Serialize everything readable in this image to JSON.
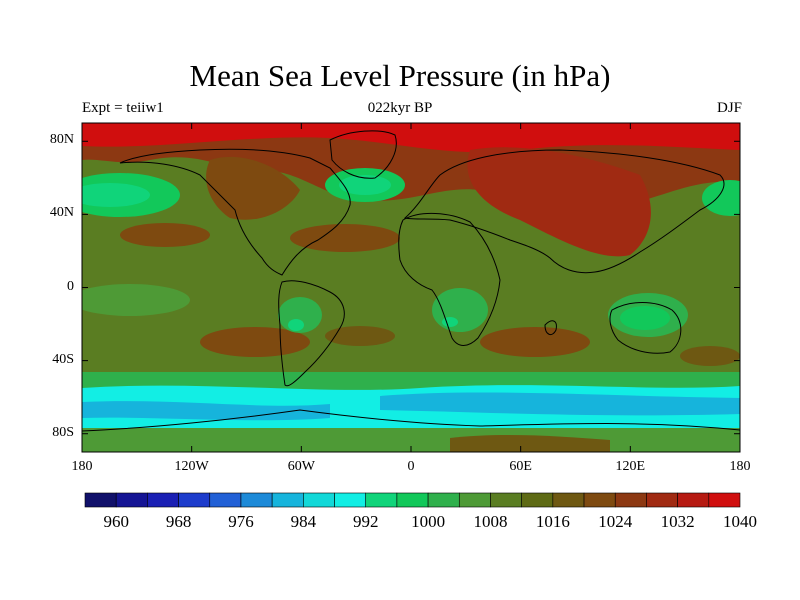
{
  "title": "Mean Sea Level Pressure (in hPa)",
  "subtitle_left": "Expt = teiiw1",
  "subtitle_center": "022kyr BP",
  "subtitle_right": "DJF",
  "lat_ticks": [
    "80N",
    "40N",
    "0",
    "40S",
    "80S"
  ],
  "lon_ticks": [
    "180",
    "120W",
    "60W",
    "0",
    "60E",
    "120E",
    "180"
  ],
  "colorbar": {
    "labels": [
      "960",
      "968",
      "976",
      "984",
      "992",
      "1000",
      "1008",
      "1016",
      "1024",
      "1032",
      "1040"
    ],
    "colors": [
      "#10106a",
      "#141494",
      "#1a1fb4",
      "#1d3ccc",
      "#2160d6",
      "#1d8ad8",
      "#16b4dc",
      "#12d8d8",
      "#12eee4",
      "#10d47a",
      "#12c85a",
      "#2fb04c",
      "#4e9a36",
      "#5a7d22",
      "#5e6a14",
      "#6e5812",
      "#7e4a10",
      "#8c3812",
      "#a02a12",
      "#b61a12",
      "#d00e0e"
    ]
  },
  "map": {
    "projection": "cylindrical-equidistant",
    "lon_range": [
      -180,
      180
    ],
    "lat_range": [
      -90,
      90
    ],
    "background_color": "#5a7d22"
  }
}
